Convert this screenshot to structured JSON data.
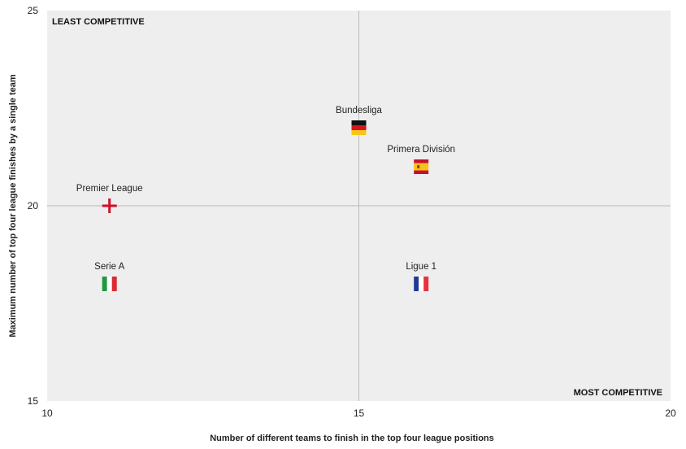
{
  "chart_data": {
    "type": "scatter",
    "xlabel": "Number of different teams to finish in the top four league positions",
    "ylabel": "Maximum number of top four league finishes by a single team",
    "xlim": [
      10,
      20
    ],
    "ylim": [
      15,
      25
    ],
    "xticks": [
      "10",
      "15",
      "20"
    ],
    "yticks": [
      "15",
      "20",
      "25"
    ],
    "reference_lines": {
      "x": 15,
      "y": 20
    },
    "annotations": {
      "top_left": "LEAST COMPETITIVE",
      "bottom_right": "MOST COMPETITIVE"
    },
    "points": [
      {
        "label": "Premier League",
        "x": 11,
        "y": 20,
        "marker": "england-flag-icon"
      },
      {
        "label": "Serie A",
        "x": 11,
        "y": 18,
        "marker": "italy-flag-icon"
      },
      {
        "label": "Bundesliga",
        "x": 15,
        "y": 22,
        "marker": "germany-flag-icon"
      },
      {
        "label": "Primera División",
        "x": 16,
        "y": 21,
        "marker": "spain-flag-icon"
      },
      {
        "label": "Ligue 1",
        "x": 16,
        "y": 18,
        "marker": "france-flag-icon"
      }
    ],
    "grid": false,
    "colors": {
      "plot_bg": "#eeeeee",
      "ref_line": "#bbbbbb"
    }
  }
}
